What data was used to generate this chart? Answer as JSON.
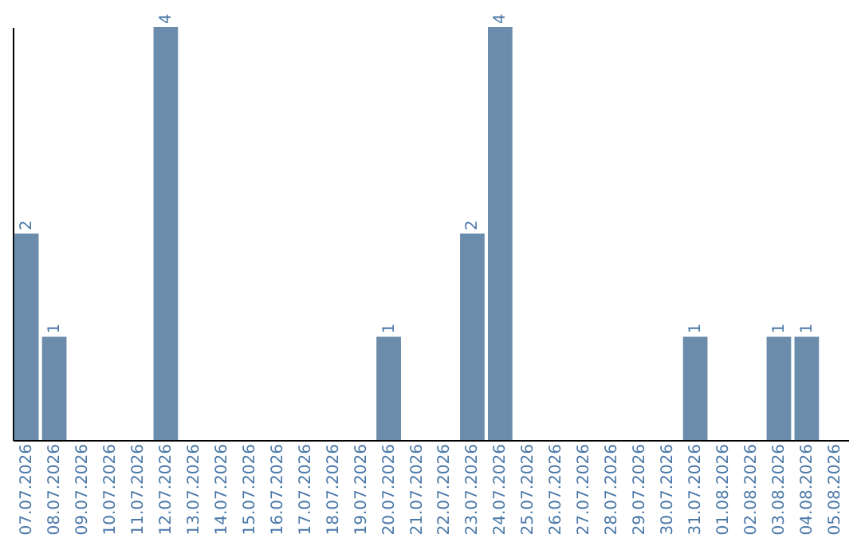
{
  "chart_data": {
    "type": "bar",
    "categories": [
      "07.07.2026",
      "08.07.2026",
      "09.07.2026",
      "10.07.2026",
      "11.07.2026",
      "12.07.2026",
      "13.07.2026",
      "14.07.2026",
      "15.07.2026",
      "16.07.2026",
      "17.07.2026",
      "18.07.2026",
      "19.07.2026",
      "20.07.2026",
      "21.07.2026",
      "22.07.2026",
      "23.07.2026",
      "24.07.2026",
      "25.07.2026",
      "26.07.2026",
      "27.07.2026",
      "28.07.2026",
      "29.07.2026",
      "30.07.2026",
      "31.07.2026",
      "01.08.2026",
      "02.08.2026",
      "03.08.2026",
      "04.08.2026",
      "05.08.2026"
    ],
    "values": [
      2,
      1,
      0,
      0,
      0,
      4,
      0,
      0,
      0,
      0,
      0,
      0,
      0,
      1,
      0,
      0,
      2,
      4,
      0,
      0,
      0,
      0,
      0,
      0,
      1,
      0,
      0,
      1,
      1,
      0
    ],
    "value_labels": [
      "2",
      "1",
      null,
      null,
      null,
      "4",
      null,
      null,
      null,
      null,
      null,
      null,
      null,
      "1",
      null,
      null,
      "2",
      "4",
      null,
      null,
      null,
      null,
      null,
      null,
      "1",
      null,
      null,
      "1",
      "1",
      null
    ],
    "color": "#6b8cab",
    "grid": false,
    "tick_labels": "x"
  }
}
